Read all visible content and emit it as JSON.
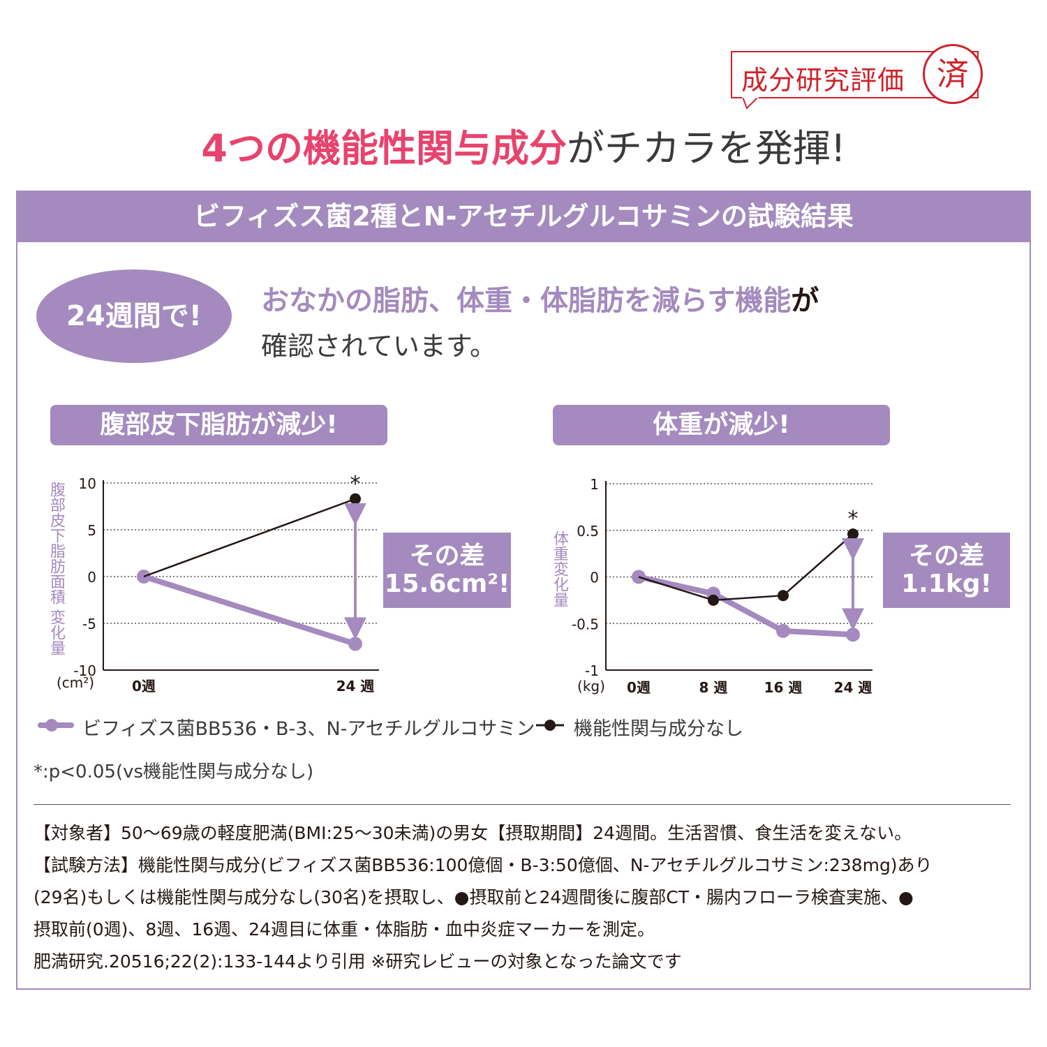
{
  "badge": {
    "text": "成分研究評価",
    "seal": "済"
  },
  "headline": {
    "pink": "4つの機能性関与成分",
    "dark": "がチカラを発揮!"
  },
  "panel": {
    "header": "ビフィズス菌2種とN-アセチルグルコサミンの試験結果",
    "oval": "24週間で!",
    "lead_purple": "おなかの脂肪、体重・体脂肪を減らす機能",
    "lead_suffix": "が",
    "lead_line2": "確認されています。"
  },
  "chart_titles": {
    "left": "腹部皮下脂肪が減少!",
    "right": "体重が減少!"
  },
  "chart_data": [
    {
      "type": "line",
      "title": "腹部皮下脂肪が減少!",
      "ylabel": "腹部皮下脂肪面積 変化量",
      "yunit": "(cm²)",
      "categories": [
        "0週",
        "24 週"
      ],
      "x": [
        0,
        24
      ],
      "ylim": [
        -10,
        10
      ],
      "yticks": [
        "10",
        "5",
        "0",
        "-5",
        "-10"
      ],
      "series": [
        {
          "name": "ビフィズス菌BB536・B-3、N-アセチルグルコサミン",
          "color": "#a48abe",
          "values": [
            0,
            -7.2
          ]
        },
        {
          "name": "機能性関与成分なし",
          "color": "#231815",
          "values": [
            0,
            8.3
          ]
        }
      ],
      "annotation": "*",
      "difference_label": [
        "その差",
        "15.6cm²!"
      ]
    },
    {
      "type": "line",
      "title": "体重が減少!",
      "ylabel": "体重変化量",
      "yunit": "(kg)",
      "categories": [
        "0週",
        "8 週",
        "16 週",
        "24 週"
      ],
      "x": [
        0,
        8,
        16,
        24
      ],
      "ylim": [
        -1,
        1
      ],
      "yticks": [
        "1",
        "0.5",
        "0",
        "-0.5",
        "-1"
      ],
      "series": [
        {
          "name": "ビフィズス菌BB536・B-3、N-アセチルグルコサミン",
          "color": "#a48abe",
          "values": [
            0,
            -0.18,
            -0.58,
            -0.62
          ]
        },
        {
          "name": "機能性関与成分なし",
          "color": "#231815",
          "values": [
            0,
            -0.25,
            -0.2,
            0.46
          ]
        }
      ],
      "annotation": "*",
      "difference_label": [
        "その差",
        "1.1kg!"
      ]
    }
  ],
  "legend": {
    "purple": "ビフィズス菌BB536・B-3、N-アセチルグルコサミン",
    "black": "機能性関与成分なし"
  },
  "p_note": "*:p<0.05(vs機能性関与成分なし)",
  "footnotes": [
    "【対象者】50〜69歳の軽度肥満(BMI:25〜30未満)の男女【摂取期間】24週間。生活習慣、食生活を変えない。",
    "【試験方法】機能性関与成分(ビフィズス菌BB536:100億個・B-3:50億個、N-アセチルグルコサミン:238mg)あり",
    "(29名)もしくは機能性関与成分なし(30名)を摂取し、●摂取前と24週間後に腹部CT・腸内フローラ検査実施、●",
    "摂取前(0週)、8週、16週、24週目に体重・体脂肪・血中炎症マーカーを測定。",
    "肥満研究.20516;22(2):133-144より引用 ※研究レビューの対象となった論文です"
  ]
}
